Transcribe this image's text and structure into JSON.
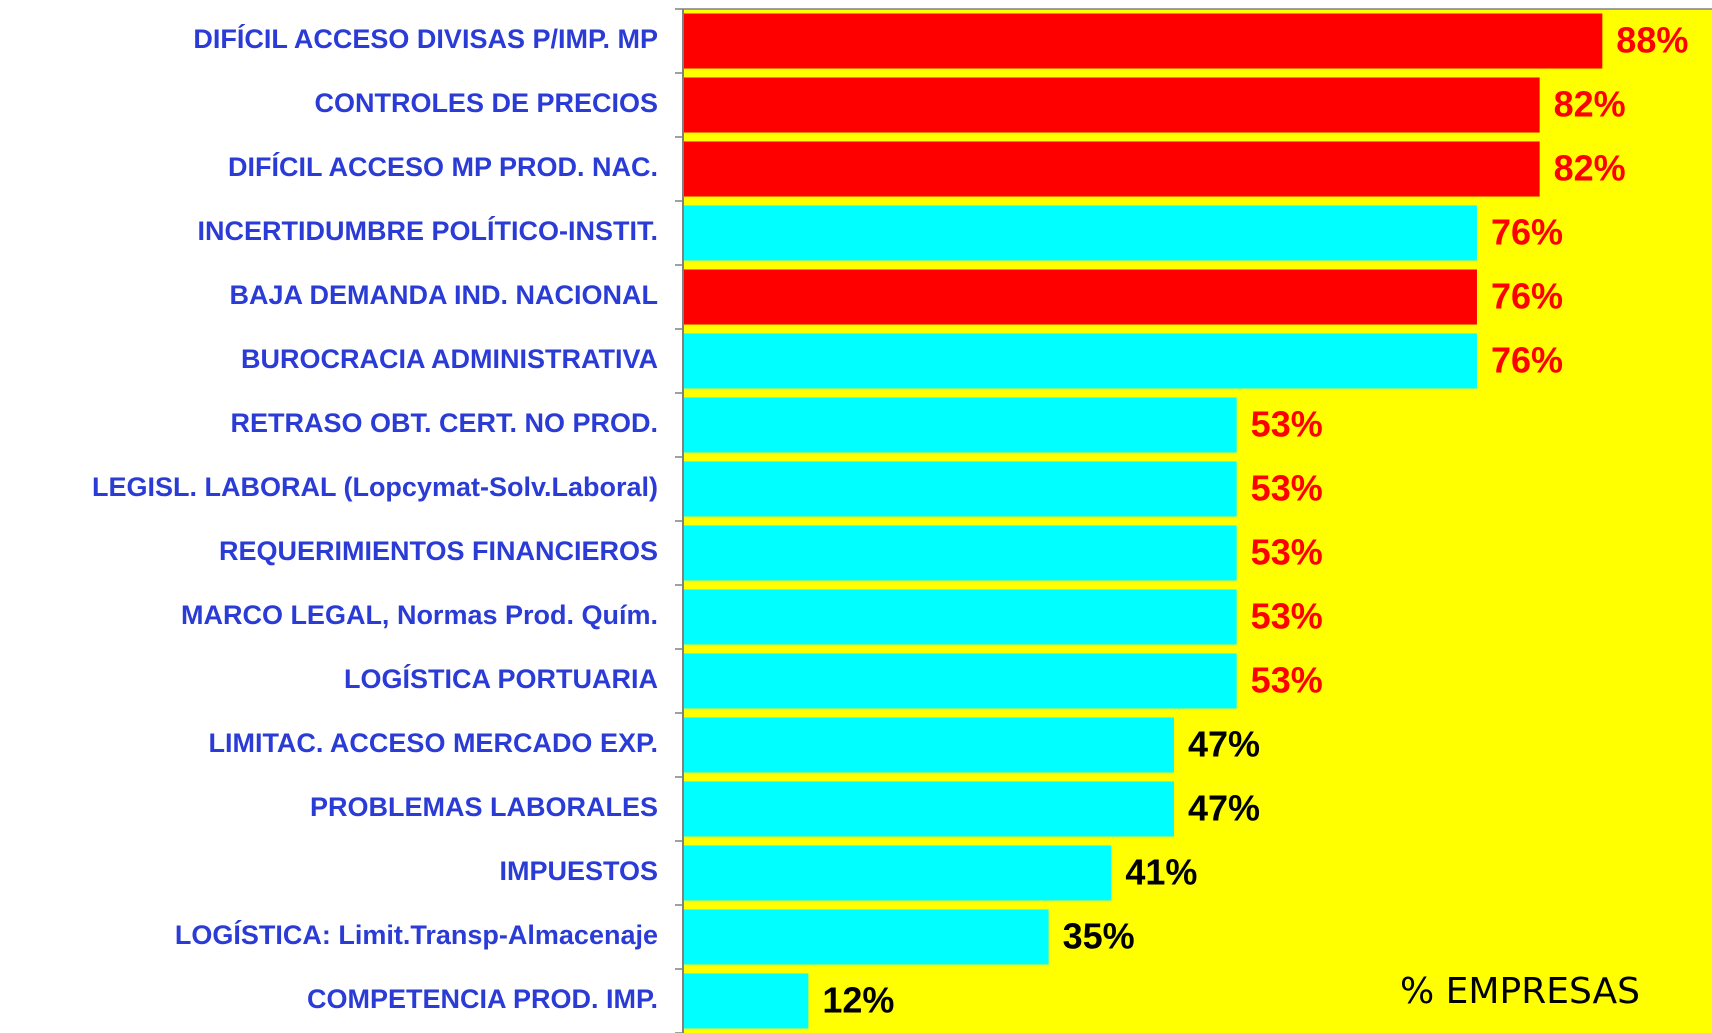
{
  "chart_data": {
    "type": "barh",
    "categories": [
      "DIFÍCIL ACCESO DIVISAS P/IMP. MP",
      "CONTROLES DE PRECIOS",
      "DIFÍCIL ACCESO MP PROD. NAC.",
      "INCERTIDUMBRE POLÍTICO-INSTIT.",
      "BAJA DEMANDA IND. NACIONAL",
      "BUROCRACIA ADMINISTRATIVA",
      "RETRASO OBT. CERT. NO PROD.",
      "LEGISL. LABORAL (Lopcymat-Solv.Laboral)",
      "REQUERIMIENTOS FINANCIEROS",
      "MARCO LEGAL, Normas Prod. Quím.",
      "LOGÍSTICA PORTUARIA",
      "LIMITAC. ACCESO MERCADO EXP.",
      "PROBLEMAS LABORALES",
      "IMPUESTOS",
      "LOGÍSTICA: Limit.Transp-Almacenaje",
      "COMPETENCIA PROD. IMP."
    ],
    "values": [
      88,
      82,
      82,
      76,
      76,
      76,
      53,
      53,
      53,
      53,
      53,
      47,
      47,
      41,
      35,
      12
    ],
    "value_labels": [
      "88%",
      "82%",
      "82%",
      "76%",
      "76%",
      "76%",
      "53%",
      "53%",
      "53%",
      "53%",
      "53%",
      "47%",
      "47%",
      "41%",
      "35%",
      "12%"
    ],
    "colors": [
      "#ff0000",
      "#ff0000",
      "#ff0000",
      "#00ffff",
      "#ff0000",
      "#00ffff",
      "#00ffff",
      "#00ffff",
      "#00ffff",
      "#00ffff",
      "#00ffff",
      "#00ffff",
      "#00ffff",
      "#00ffff",
      "#00ffff",
      "#00ffff"
    ],
    "label_colors": [
      "#ff0000",
      "#ff0000",
      "#ff0000",
      "#ff0000",
      "#ff0000",
      "#ff0000",
      "#ff0000",
      "#ff0000",
      "#ff0000",
      "#ff0000",
      "#ff0000",
      "#000000",
      "#000000",
      "#000000",
      "#000000",
      "#000000"
    ],
    "xlabel": "% EMPRESAS",
    "background": "#ffff00",
    "xlim": [
      0,
      98.5
    ]
  }
}
